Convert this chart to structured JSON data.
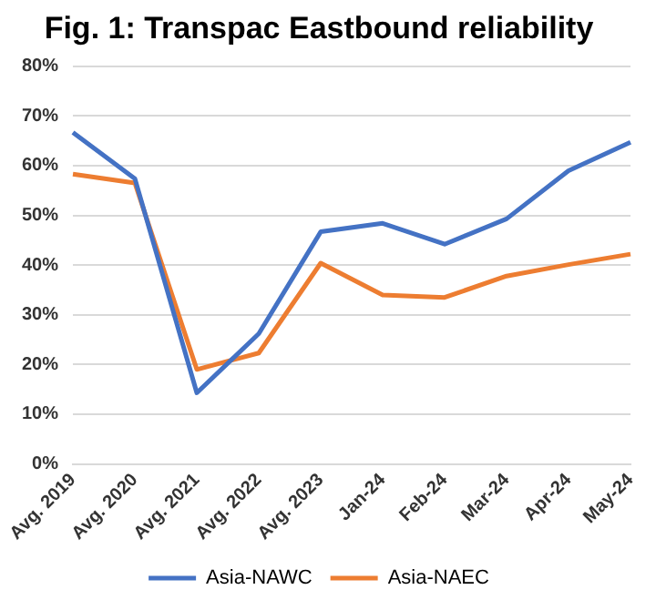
{
  "chart_data": {
    "type": "line",
    "title": "Fig. 1: Transpac Eastbound reliability",
    "categories": [
      "Avg. 2019",
      "Avg. 2020",
      "Avg. 2021",
      "Avg. 2022",
      "Avg. 2023",
      "Jan-24",
      "Feb-24",
      "Mar-24",
      "Apr-24",
      "May-24"
    ],
    "series": [
      {
        "name": "Asia-NAWC",
        "color": "#4472c4",
        "values": [
          66.7,
          57.4,
          14.3,
          26.2,
          46.7,
          48.4,
          44.2,
          49.3,
          59.0,
          64.7
        ]
      },
      {
        "name": "Asia-NAEC",
        "color": "#ed7d31",
        "values": [
          58.3,
          56.5,
          19.0,
          22.3,
          40.4,
          34.0,
          33.5,
          37.8,
          40.1,
          42.2
        ]
      }
    ],
    "ylim": [
      0,
      80
    ],
    "yticks": [
      {
        "value": 0,
        "label": "0%"
      },
      {
        "value": 10,
        "label": "10%"
      },
      {
        "value": 20,
        "label": "20%"
      },
      {
        "value": 30,
        "label": "30%"
      },
      {
        "value": 40,
        "label": "40%"
      },
      {
        "value": 50,
        "label": "50%"
      },
      {
        "value": 60,
        "label": "60%"
      },
      {
        "value": 70,
        "label": "70%"
      },
      {
        "value": 80,
        "label": "80%"
      }
    ],
    "grid": "y",
    "legend": "bottom",
    "marker": "none",
    "line_style": "solid"
  }
}
